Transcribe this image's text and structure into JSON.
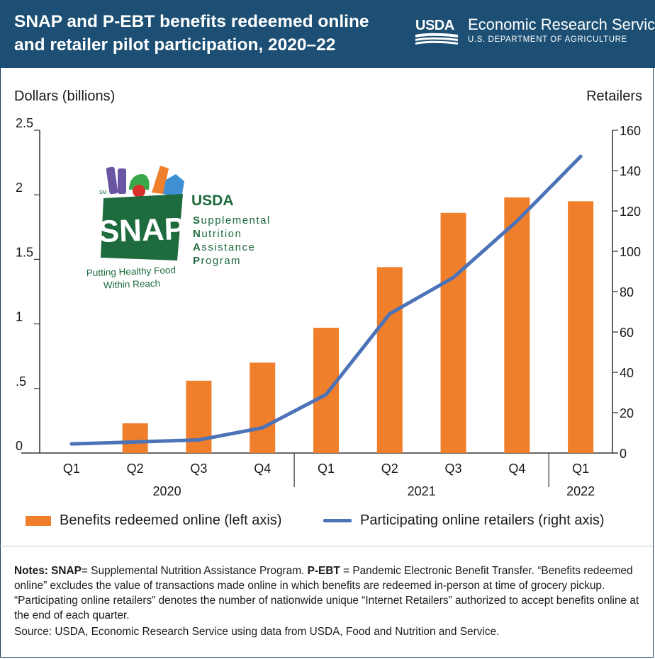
{
  "header": {
    "title_line1": "SNAP and P-EBT benefits redeemed online",
    "title_line2": "and retailer pilot participation, 2020–22",
    "logo_text": "USDA",
    "agency_name": "Economic Research Service",
    "department": "U.S. DEPARTMENT OF AGRICULTURE"
  },
  "snap_logo": {
    "sm_mark": "SM",
    "usda": "USDA",
    "snap": "SNAP",
    "program_lines": [
      {
        "initial": "S",
        "rest": "upplemental"
      },
      {
        "initial": "N",
        "rest": "utrition"
      },
      {
        "initial": "A",
        "rest": "ssistance"
      },
      {
        "initial": "P",
        "rest": "rogram"
      }
    ],
    "tagline_line1": "Putting Healthy Food",
    "tagline_line2": "Within Reach"
  },
  "chart_data": {
    "type": "bar+line",
    "left_axis_label": "Dollars (billions)",
    "right_axis_label": "Retailers",
    "left_ylim": [
      0,
      2.5
    ],
    "right_ylim": [
      0,
      160
    ],
    "left_ticks": [
      {
        "value": 0,
        "label": "0"
      },
      {
        "value": 0.5,
        "label": ".5"
      },
      {
        "value": 1,
        "label": "1"
      },
      {
        "value": 1.5,
        "label": "1.5"
      },
      {
        "value": 2,
        "label": "2"
      },
      {
        "value": 2.5,
        "label": "2.5"
      }
    ],
    "right_ticks": [
      {
        "value": 0,
        "label": "0"
      },
      {
        "value": 20,
        "label": "20"
      },
      {
        "value": 40,
        "label": "40"
      },
      {
        "value": 60,
        "label": "60"
      },
      {
        "value": 80,
        "label": "80"
      },
      {
        "value": 100,
        "label": "100"
      },
      {
        "value": 120,
        "label": "120"
      },
      {
        "value": 140,
        "label": "140"
      },
      {
        "value": 160,
        "label": "160"
      }
    ],
    "categories": [
      "Q1",
      "Q2",
      "Q3",
      "Q4",
      "Q1",
      "Q2",
      "Q3",
      "Q4",
      "Q1"
    ],
    "year_groups": [
      {
        "label": "2020",
        "count": 4
      },
      {
        "label": "2021",
        "count": 4
      },
      {
        "label": "2022",
        "count": 1
      }
    ],
    "series": [
      {
        "name": "Benefits redeemed online (left axis)",
        "kind": "bar",
        "axis": "left",
        "color": "#f07f2b",
        "values": [
          0.0,
          0.23,
          0.56,
          0.7,
          0.97,
          1.44,
          1.86,
          1.98,
          1.95
        ]
      },
      {
        "name": "Participating online retailers (right axis)",
        "kind": "line",
        "axis": "right",
        "color": "#4c73b8",
        "values": [
          4.5,
          5.5,
          6.5,
          12.5,
          29,
          69,
          87,
          115,
          147
        ]
      }
    ],
    "grid": false
  },
  "notes": {
    "p1_b1": "Notes: SNAP",
    "p1_t1": "= Supplemental Nutrition Assistance Program. ",
    "p1_b2": "P-EBT",
    "p1_t2": " = Pandemic Electronic Benefit Transfer. “Benefits redeemed online” excludes the value of transactions made online in which benefits are redeemed in-person at time of grocery pickup. “Participating online retailers” denotes the number of nationwide unique “Internet Retailers” authorized to accept benefits online at the end of each quarter.",
    "source": "Source: USDA, Economic Research Service using data from USDA, Food and Nutrition and Service."
  },
  "colors": {
    "header_bg": "#1c4f73",
    "bar": "#f07f2b",
    "line": "#4c73b8",
    "snap_green": "#1e6b3e"
  }
}
